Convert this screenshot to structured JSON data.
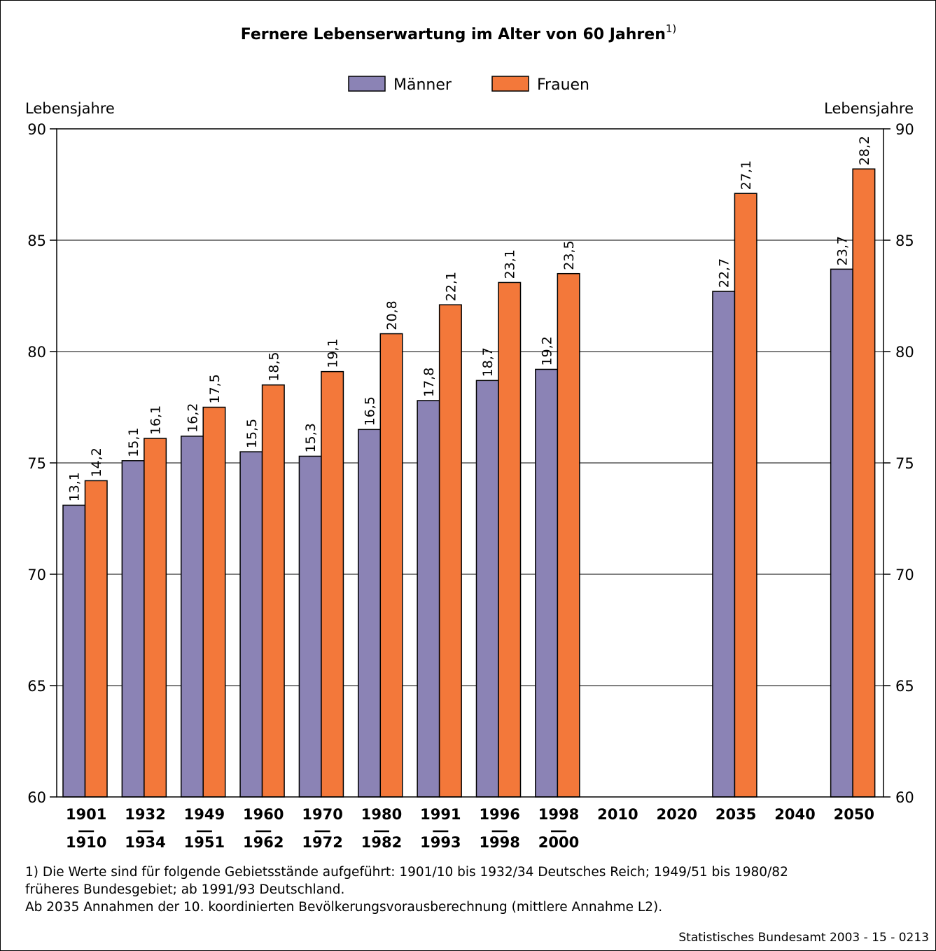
{
  "chart_data": {
    "type": "bar",
    "title": "Fernere Lebenserwartung im Alter von 60 Jahren",
    "title_superscript": "1)",
    "ylabel_left": "Lebensjahre",
    "ylabel_right": "Lebensjahre",
    "ylim": [
      60,
      90
    ],
    "yticks": [
      60,
      65,
      70,
      75,
      80,
      85,
      90
    ],
    "grid": true,
    "legend_position": "top-center",
    "categories": [
      {
        "top": "1901",
        "bottom": "1910"
      },
      {
        "top": "1932",
        "bottom": "1934"
      },
      {
        "top": "1949",
        "bottom": "1951"
      },
      {
        "top": "1960",
        "bottom": "1962"
      },
      {
        "top": "1970",
        "bottom": "1972"
      },
      {
        "top": "1980",
        "bottom": "1982"
      },
      {
        "top": "1991",
        "bottom": "1993"
      },
      {
        "top": "1996",
        "bottom": "1998"
      },
      {
        "top": "1998",
        "bottom": "2000"
      },
      {
        "top": "2010",
        "bottom": ""
      },
      {
        "top": "2020",
        "bottom": ""
      },
      {
        "top": "2035",
        "bottom": ""
      },
      {
        "top": "2040",
        "bottom": ""
      },
      {
        "top": "2050",
        "bottom": ""
      }
    ],
    "series": [
      {
        "name": "Männer",
        "color": "#8b83b5",
        "values": [
          73.1,
          75.1,
          76.2,
          75.5,
          75.3,
          76.5,
          77.8,
          78.7,
          79.2,
          null,
          null,
          82.7,
          null,
          83.7
        ],
        "labels": [
          "13,1",
          "15,1",
          "16,2",
          "15,5",
          "15,3",
          "16,5",
          "17,8",
          "18,7",
          "19,2",
          null,
          null,
          "22,7",
          null,
          "23,7"
        ]
      },
      {
        "name": "Frauen",
        "color": "#f3783a",
        "values": [
          74.2,
          76.1,
          77.5,
          78.5,
          79.1,
          80.8,
          82.1,
          83.1,
          83.5,
          null,
          null,
          87.1,
          null,
          88.2
        ],
        "labels": [
          "14,2",
          "16,1",
          "17,5",
          "18,5",
          "19,1",
          "20,8",
          "22,1",
          "23,1",
          "23,5",
          null,
          null,
          "27,1",
          null,
          "28,2"
        ]
      }
    ]
  },
  "footnote": {
    "line1": "1) Die Werte sind für folgende Gebietsstände aufgeführt: 1901/10 bis 1932/34 Deutsches Reich; 1949/51 bis 1980/82",
    "line2": "früheres Bundesgebiet; ab 1991/93 Deutschland.",
    "line3": "Ab 2035 Annahmen der 10. koordinierten Bevölkerungsvorausberechnung (mittlere Annahme L2)."
  },
  "source": "Statistisches Bundesamt 2003 - 15 - 0213"
}
